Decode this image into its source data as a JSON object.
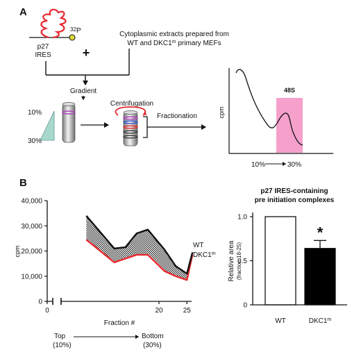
{
  "panel_a": {
    "label": "A",
    "rna_label_line1": "p27",
    "rna_label_line2": "IRES",
    "isotope_mass": "32",
    "isotope_symbol": "P",
    "plus": "+",
    "extract_line1": "Cytoplasmic extracts prepared from",
    "extract_line2_prefix": "WT and DKC1",
    "extract_line2_sup": "m",
    "extract_line2_suffix": " primary MEFs",
    "gradient_label": "Gradient",
    "grad_top": "10%",
    "grad_bottom": "30%",
    "centrifugation_label": "Centrifugation",
    "fractionation_label": "Fractionation",
    "profile_ylabel": "cpm",
    "peak_label": "48S",
    "profile_x_start": "10%",
    "profile_x_end": "30%",
    "colors": {
      "rna": "#e8282e",
      "isotope": "#e0d83a",
      "peak_band": "#f6a0cc",
      "wedge": "#a8d8cc",
      "band_purple": "#b040c0",
      "band_blue": "#3050d0"
    }
  },
  "panel_b": {
    "label": "B",
    "line_chart": {
      "ylabel": "cpm",
      "xlabel": "Fraction #",
      "yticks": [
        "40,000",
        "30,000",
        "20,000",
        "10,000",
        "0"
      ],
      "xticks": [
        "0",
        "20",
        "25"
      ],
      "series_wt_label": "WT",
      "series_dkc_prefix": "DKC1",
      "series_dkc_sup": "m",
      "top_label_line1": "Top",
      "top_label_line2": "(10%)",
      "bottom_label_line1": "Bottom",
      "bottom_label_line2": "(30%)"
    },
    "bar_chart": {
      "title_line1": "p27 IRES-containing",
      "title_line2": "pre initiation complexes",
      "ylabel_line1": "Relative area",
      "ylabel_line2": "(fraction 18-25)",
      "yticks": [
        "1.0",
        "0.5",
        "0"
      ],
      "cat_wt": "WT",
      "cat_dkc_prefix": "DKC1",
      "cat_dkc_sup": "m",
      "significance": "*"
    }
  },
  "chart_data": [
    {
      "type": "line",
      "xlabel": "Fraction #",
      "ylabel": "cpm",
      "ylim": [
        0,
        40000
      ],
      "x": [
        7,
        12,
        14,
        16,
        18,
        21,
        23,
        25,
        26
      ],
      "series": [
        {
          "name": "WT",
          "values": [
            34000,
            21000,
            21500,
            27000,
            28500,
            20500,
            14000,
            11000,
            19500
          ],
          "color": "#111111"
        },
        {
          "name": "DKC1m",
          "values": [
            24500,
            15500,
            17000,
            18500,
            18500,
            12000,
            10000,
            8500,
            18500
          ],
          "color": "#e8282e"
        }
      ],
      "shaded_region_between_series": true
    },
    {
      "type": "bar",
      "title": "p27 IRES-containing pre initiation complexes",
      "ylabel": "Relative area (fraction 18-25)",
      "categories": [
        "WT",
        "DKC1m"
      ],
      "values": [
        1.0,
        0.64
      ],
      "error": [
        0,
        0.09
      ],
      "ylim": [
        0,
        1.0
      ],
      "colors": [
        "#ffffff",
        "#000000"
      ],
      "annotations": [
        {
          "category": "DKC1m",
          "text": "*"
        }
      ]
    }
  ]
}
